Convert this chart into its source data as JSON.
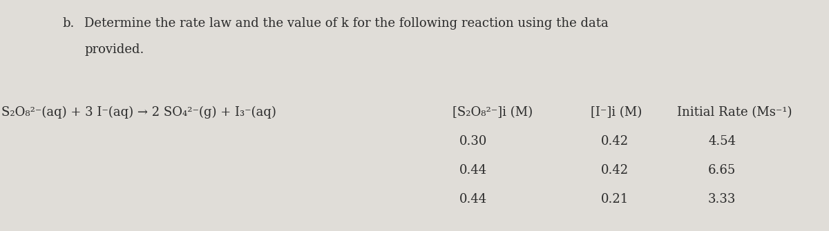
{
  "background_color": "#e0ddd8",
  "fig_width": 12.0,
  "fig_height": 3.35,
  "label_b": "b.",
  "title_line1": "Determine the rate law and the value of k for the following reaction using the data",
  "title_line2": "provided.",
  "reaction": "S₂O₈²⁻(aq) + 3 I⁻(aq) → 2 SO₄²⁻(g) + I₃⁻(aq)",
  "col_header_1": "[S₂O₈²⁻]i (M)",
  "col_header_2": "[I⁻]i (M)",
  "col_header_3": "Initial Rate (Ms⁻¹)",
  "data_rows": [
    [
      "0.30",
      "0.42",
      "4.54"
    ],
    [
      "0.44",
      "0.42",
      "6.65"
    ],
    [
      "0.44",
      "0.21",
      "3.33"
    ]
  ],
  "text_color": "#2a2a2a",
  "font_size_title": 13.0,
  "font_size_reaction": 13.0,
  "font_size_table": 13.0
}
